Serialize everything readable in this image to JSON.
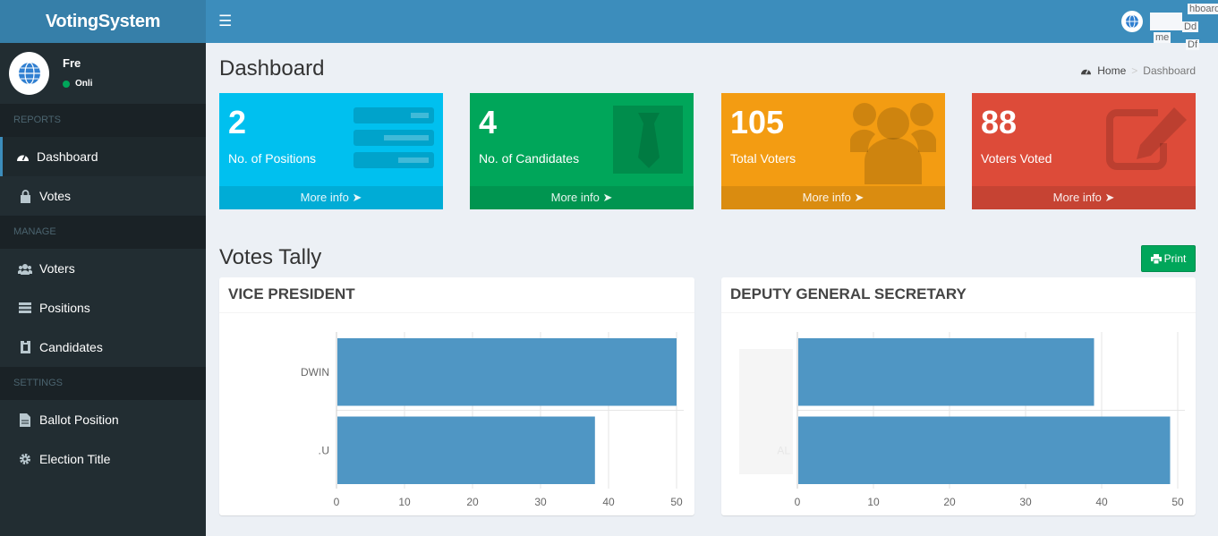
{
  "app": {
    "logo_text": "VotingSystem"
  },
  "navbar": {
    "menu_icon": "hamburger-icon",
    "fragments": [
      "hboard",
      "Dd",
      "Df",
      "me"
    ]
  },
  "user": {
    "name": "Fre",
    "status": "Onli"
  },
  "sidebar": {
    "sections": [
      {
        "header": "REPORTS",
        "items": [
          {
            "label": "Dashboard",
            "icon": "dashboard-icon",
            "active": true
          },
          {
            "label": "Votes",
            "icon": "lock-icon"
          }
        ]
      },
      {
        "header": "MANAGE",
        "items": [
          {
            "label": "Voters",
            "icon": "users-icon"
          },
          {
            "label": "Positions",
            "icon": "list-icon"
          },
          {
            "label": "Candidates",
            "icon": "id-card-icon"
          }
        ]
      },
      {
        "header": "SETTINGS",
        "items": [
          {
            "label": "Ballot Position",
            "icon": "file-icon"
          },
          {
            "label": "Election Title",
            "icon": "gear-icon"
          }
        ]
      }
    ]
  },
  "page": {
    "title": "Dashboard",
    "breadcrumb": {
      "home": "Home",
      "current": "Dashboard"
    }
  },
  "stats": [
    {
      "value": "2",
      "label": "No. of Positions",
      "footer": "More info",
      "color": "#00c0ef",
      "icon": "list-icon"
    },
    {
      "value": "4",
      "label": "No. of Candidates",
      "footer": "More info",
      "color": "#00a65a",
      "icon": "tie-icon"
    },
    {
      "value": "105",
      "label": "Total Voters",
      "footer": "More info",
      "color": "#f39c12",
      "icon": "users-icon"
    },
    {
      "value": "88",
      "label": "Voters Voted",
      "footer": "More info",
      "color": "#dd4b39",
      "icon": "edit-icon"
    }
  ],
  "tally": {
    "title": "Votes Tally",
    "print_label": "Print"
  },
  "chart_data": [
    {
      "type": "bar",
      "orientation": "horizontal",
      "title": "VICE PRESIDENT",
      "categories": [
        "DWIN",
        "JAMB…U"
      ],
      "values": [
        50,
        38
      ],
      "xlim": [
        0,
        50
      ],
      "xticks": [
        0,
        10,
        20,
        30,
        40,
        50
      ],
      "grid": true,
      "color": "#4f96c4"
    },
    {
      "type": "bar",
      "orientation": "horizontal",
      "title": "DEPUTY GENERAL SECRETARY",
      "categories": [
        "",
        "AL"
      ],
      "values": [
        39,
        49
      ],
      "xlim": [
        0,
        50
      ],
      "xticks": [
        0,
        10,
        20,
        30,
        40,
        50
      ],
      "grid": true,
      "color": "#4f96c4"
    }
  ]
}
